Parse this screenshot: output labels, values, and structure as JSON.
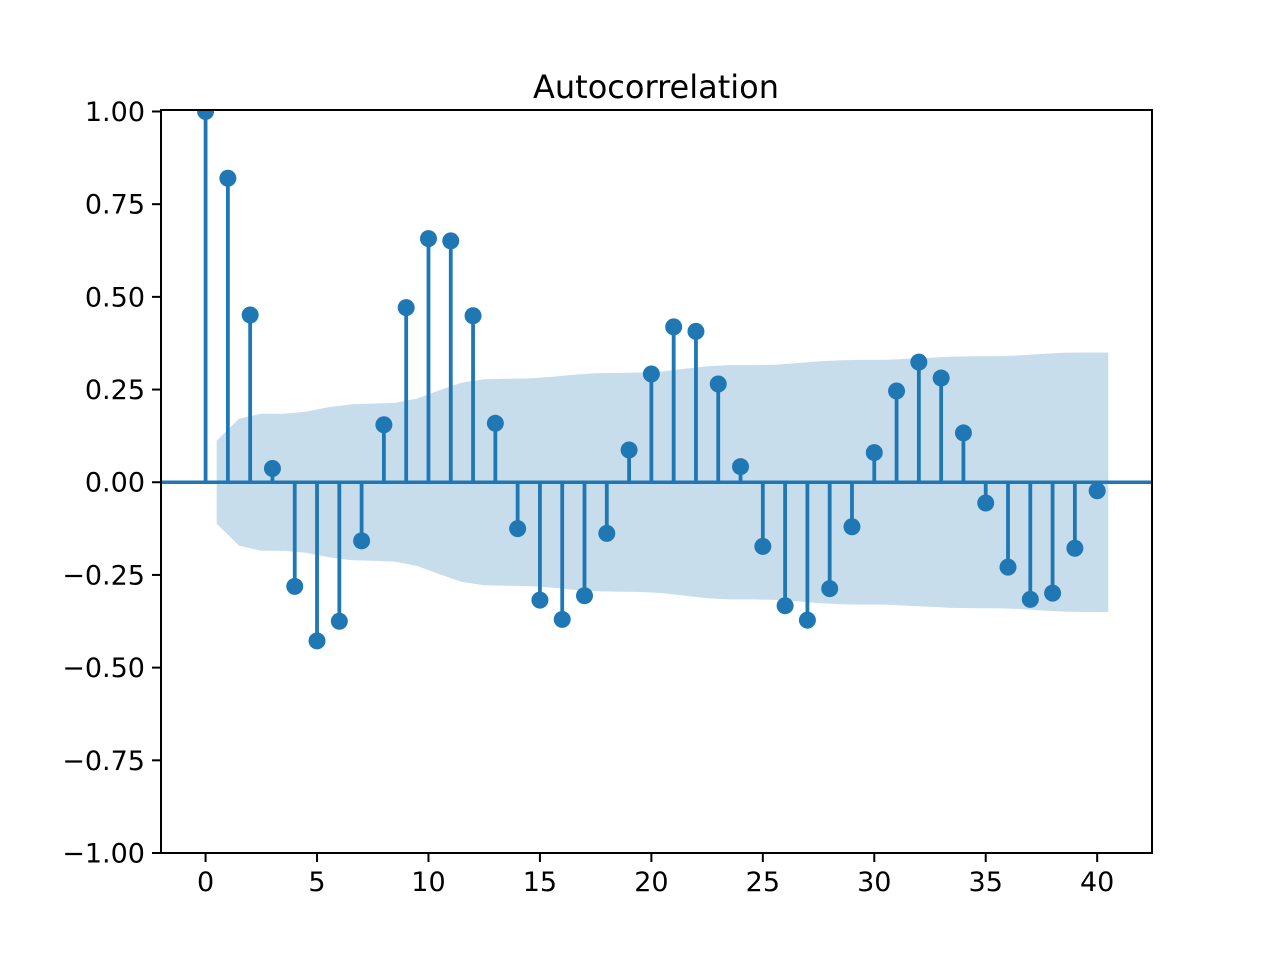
{
  "chart_data": {
    "type": "scatter",
    "variant": "stem-acf-plot",
    "title": "Autocorrelation",
    "xlabel": "",
    "ylabel": "",
    "grid": false,
    "legend": null,
    "lags": [
      0,
      1,
      2,
      3,
      4,
      5,
      6,
      7,
      8,
      9,
      10,
      11,
      12,
      13,
      14,
      15,
      16,
      17,
      18,
      19,
      20,
      21,
      22,
      23,
      24,
      25,
      26,
      27,
      28,
      29,
      30,
      31,
      32,
      33,
      34,
      35,
      36,
      37,
      38,
      39,
      40
    ],
    "acf": [
      1.0,
      0.82,
      0.451,
      0.037,
      -0.281,
      -0.428,
      -0.375,
      -0.158,
      0.155,
      0.471,
      0.657,
      0.651,
      0.449,
      0.159,
      -0.125,
      -0.318,
      -0.37,
      -0.306,
      -0.138,
      0.087,
      0.292,
      0.419,
      0.407,
      0.265,
      0.042,
      -0.173,
      -0.333,
      -0.372,
      -0.287,
      -0.12,
      0.08,
      0.246,
      0.324,
      0.281,
      0.133,
      -0.056,
      -0.229,
      -0.316,
      -0.299,
      -0.178,
      -0.023
    ],
    "zero_line": 0.0,
    "confidence_band": {
      "description": "95% confidence band (Bartlett), symmetric about 0; half-width for lags 1..40, polygon spans lag 0.5 to 40.5",
      "lag_start": 0.5,
      "lag_end": 40.5,
      "half_widths": [
        0.112,
        0.171,
        0.185,
        0.185,
        0.19,
        0.202,
        0.21,
        0.212,
        0.214,
        0.226,
        0.248,
        0.269,
        0.278,
        0.279,
        0.28,
        0.284,
        0.29,
        0.294,
        0.295,
        0.296,
        0.299,
        0.306,
        0.313,
        0.316,
        0.316,
        0.317,
        0.321,
        0.326,
        0.329,
        0.33,
        0.33,
        0.333,
        0.336,
        0.339,
        0.34,
        0.34,
        0.342,
        0.346,
        0.349,
        0.35
      ]
    },
    "xlim": [
      -2.0,
      42.46
    ],
    "ylim": [
      -1.0,
      1.004
    ],
    "xticks": {
      "values": [
        0,
        5,
        10,
        15,
        20,
        25,
        30,
        35,
        40
      ],
      "labels": [
        "0",
        "5",
        "10",
        "15",
        "20",
        "25",
        "30",
        "35",
        "40"
      ]
    },
    "yticks": {
      "values": [
        1.0,
        0.75,
        0.5,
        0.25,
        0.0,
        -0.25,
        -0.5,
        -0.75,
        -1.0
      ],
      "labels": [
        "1.00",
        "0.75",
        "0.50",
        "0.25",
        "0.00",
        "−0.25",
        "−0.50",
        "−0.75",
        "−1.00"
      ]
    },
    "colors": {
      "stem": "#1f77b4",
      "marker": "#1f77b4",
      "zero_line": "#1f77b4",
      "band_fill": "#1f77b4",
      "band_opacity": 0.25,
      "axis": "#000000",
      "background": "#ffffff"
    }
  }
}
